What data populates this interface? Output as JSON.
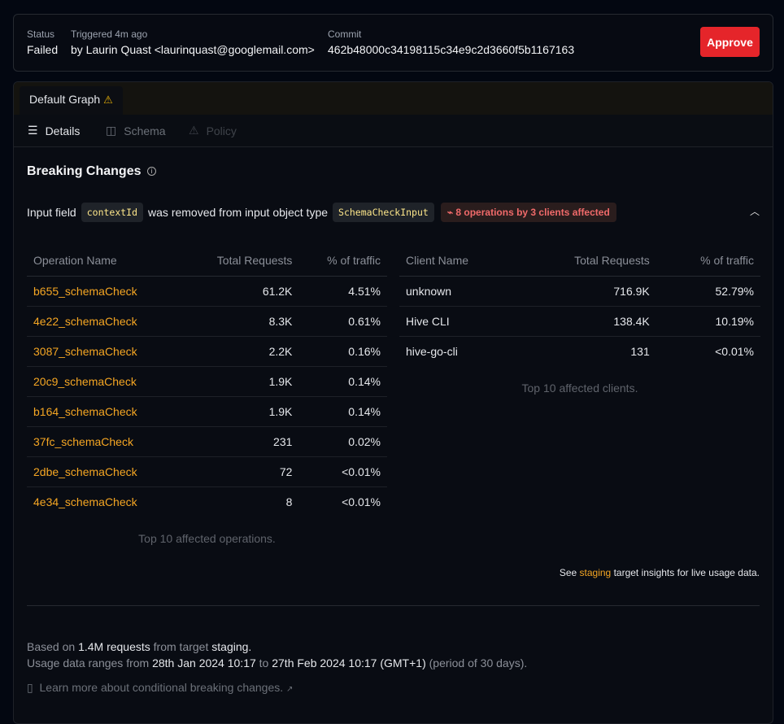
{
  "header": {
    "status_label": "Status",
    "status_value": "Failed",
    "triggered_label": "Triggered 4m ago",
    "triggered_value": "by Laurin Quast <laurinquast@googlemail.com>",
    "commit_label": "Commit",
    "commit_value": "462b48000c34198115c34e9c2d3660f5b1167163",
    "approve_label": "Approve"
  },
  "tabs": [
    {
      "label": "Default Graph",
      "icon": "warning-icon"
    }
  ],
  "subtabs": [
    {
      "label": "Details",
      "icon": "list-icon"
    },
    {
      "label": "Schema",
      "icon": "columns-icon"
    },
    {
      "label": "Policy",
      "icon": "warning-icon"
    }
  ],
  "section": {
    "title": "Breaking Changes"
  },
  "change": {
    "prefix": "Input field",
    "field": "contextId",
    "middle": "was removed from input object type",
    "type": "SchemaCheckInput",
    "badge": "8 operations by 3 clients affected"
  },
  "operations": {
    "headers": [
      "Operation Name",
      "Total Requests",
      "% of traffic"
    ],
    "rows": [
      [
        "b655_schemaCheck",
        "61.2K",
        "4.51%"
      ],
      [
        "4e22_schemaCheck",
        "8.3K",
        "0.61%"
      ],
      [
        "3087_schemaCheck",
        "2.2K",
        "0.16%"
      ],
      [
        "20c9_schemaCheck",
        "1.9K",
        "0.14%"
      ],
      [
        "b164_schemaCheck",
        "1.9K",
        "0.14%"
      ],
      [
        "37fc_schemaCheck",
        "231",
        "0.02%"
      ],
      [
        "2dbe_schemaCheck",
        "72",
        "<0.01%"
      ],
      [
        "4e34_schemaCheck",
        "8",
        "<0.01%"
      ]
    ],
    "caption": "Top 10 affected operations."
  },
  "clients": {
    "headers": [
      "Client Name",
      "Total Requests",
      "% of traffic"
    ],
    "rows": [
      [
        "unknown",
        "716.9K",
        "52.79%"
      ],
      [
        "Hive CLI",
        "138.4K",
        "10.19%"
      ],
      [
        "hive-go-cli",
        "131",
        "<0.01%"
      ]
    ],
    "caption": "Top 10 affected clients."
  },
  "insights": {
    "pre": "See",
    "link": "staging",
    "post": "target insights for live usage data."
  },
  "footer": {
    "l1a": "Based on",
    "l1b": "1.4M requests",
    "l1c": "from target",
    "l1d": "staging.",
    "l2a": "Usage data ranges from",
    "l2b": "28th Jan 2024 10:17",
    "l2c": "to",
    "l2d": "27th Feb 2024 10:17 (GMT+1)",
    "l2e": "(period of 30 days).",
    "learn": "Learn more about conditional breaking changes."
  },
  "colors": {
    "accent": "#f5a623",
    "danger": "#e5252a"
  }
}
